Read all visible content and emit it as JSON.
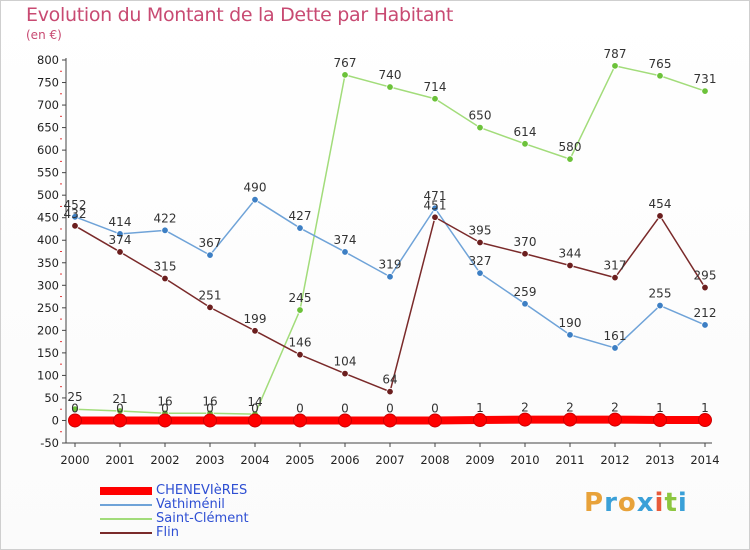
{
  "header": {
    "title": "Evolution du Montant de la Dette par Habitant",
    "subtitle": "(en €)"
  },
  "logo": {
    "letters": [
      "P",
      "r",
      "o",
      "x",
      "i",
      "t",
      "i"
    ],
    "colors": [
      "#e8a23a",
      "#3aa0d8",
      "#e8a23a",
      "#3aa0d8",
      "#e85a3a",
      "#8cc63f",
      "#3aa0d8"
    ]
  },
  "chart_data": {
    "type": "line",
    "title": "Evolution du Montant de la Dette par Habitant",
    "ylabel": "(en €)",
    "x": [
      "2000",
      "2001",
      "2002",
      "2003",
      "2004",
      "2005",
      "2006",
      "2007",
      "2008",
      "2009",
      "2010",
      "2011",
      "2012",
      "2013",
      "2014"
    ],
    "ylim": [
      -50,
      800
    ],
    "yticks": [
      -50,
      0,
      50,
      100,
      150,
      200,
      250,
      300,
      350,
      400,
      450,
      500,
      550,
      600,
      650,
      700,
      750,
      800
    ],
    "grid": false,
    "legend": "bottom-left",
    "series": [
      {
        "name": "CHENEVIèRES",
        "color": "#ff0000",
        "marker_color": "#ff0000",
        "values": [
          0,
          0,
          0,
          0,
          0,
          0,
          0,
          0,
          0,
          1,
          2,
          2,
          2,
          1,
          1
        ],
        "labels": [
          "0",
          "0",
          "0",
          "0",
          "0",
          "0",
          "0",
          "0",
          "0",
          "1",
          "2",
          "2",
          "2",
          "1",
          "1"
        ]
      },
      {
        "name": "Vathiménil",
        "color": "#6fa3d8",
        "marker_color": "#3d7fc4",
        "values": [
          452,
          414,
          422,
          367,
          490,
          427,
          374,
          319,
          471,
          327,
          259,
          190,
          161,
          255,
          212
        ],
        "labels": [
          "452",
          "414",
          "422",
          "367",
          "490",
          "427",
          "374",
          "319",
          "471",
          "327",
          "259",
          "190",
          "161",
          "255",
          "212"
        ]
      },
      {
        "name": "Saint-Clément",
        "color": "#a2dc7a",
        "marker_color": "#6cc23a",
        "values": [
          25,
          21,
          16,
          16,
          14,
          245,
          767,
          740,
          714,
          650,
          614,
          580,
          787,
          765,
          731
        ],
        "labels": [
          "25",
          "21",
          "16",
          "16",
          "14",
          "245",
          "767",
          "740",
          "714",
          "650",
          "614",
          "580",
          "787",
          "765",
          "731"
        ]
      },
      {
        "name": "Flin",
        "color": "#7a2a2a",
        "marker_color": "#6b1e1e",
        "values": [
          432,
          374,
          315,
          251,
          199,
          146,
          104,
          64,
          451,
          395,
          370,
          344,
          317,
          454,
          295
        ],
        "labels": [
          "432",
          "374",
          "315",
          "251",
          "199",
          "146",
          "104",
          "64",
          "451",
          "395",
          "370",
          "344",
          "317",
          "454",
          "295"
        ]
      }
    ]
  }
}
